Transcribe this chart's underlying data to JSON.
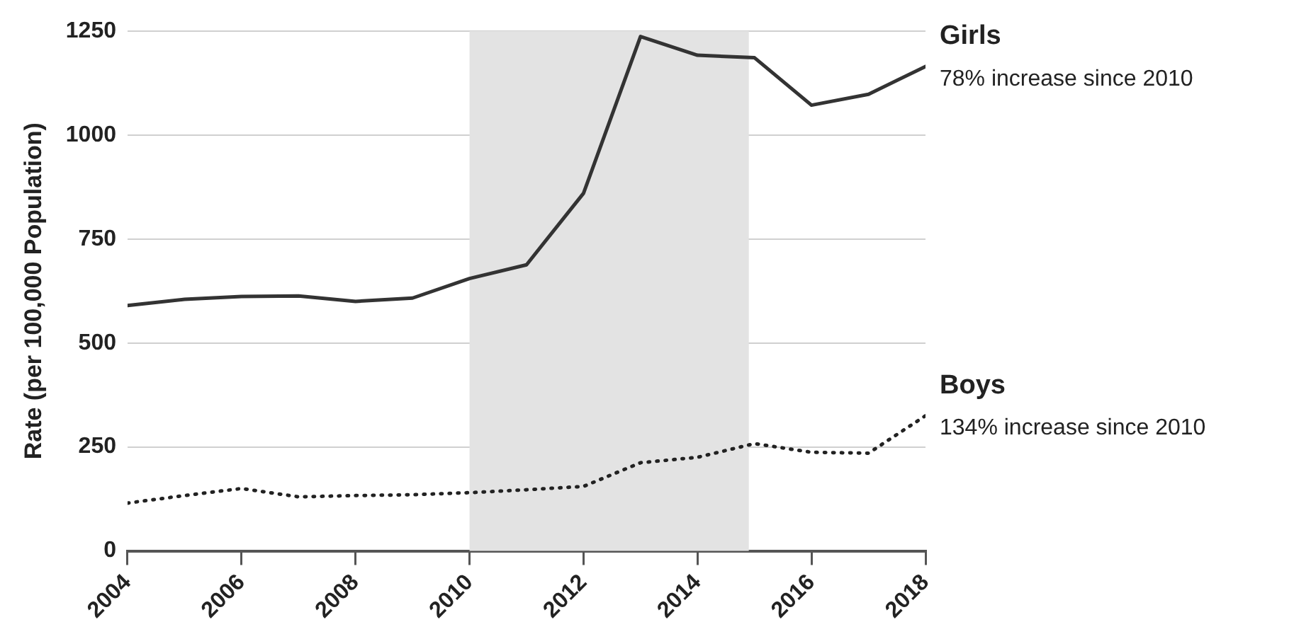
{
  "chart_data": {
    "type": "line",
    "ylabel": "Rate (per 100,000 Population)",
    "x": [
      2004,
      2005,
      2006,
      2007,
      2008,
      2009,
      2010,
      2011,
      2012,
      2013,
      2014,
      2015,
      2016,
      2017,
      2018
    ],
    "series": [
      {
        "name": "Girls",
        "color": "#333333",
        "line_style": "solid",
        "values": [
          590,
          605,
          612,
          613,
          600,
          608,
          655,
          688,
          860,
          1237,
          1192,
          1186,
          1072,
          1098,
          1165
        ]
      },
      {
        "name": "Boys",
        "color": "#222222",
        "line_style": "dotted",
        "values": [
          115,
          133,
          150,
          130,
          133,
          135,
          140,
          147,
          155,
          212,
          225,
          258,
          237,
          235,
          325
        ]
      }
    ],
    "xlim": [
      2004,
      2018
    ],
    "xticks": [
      2004,
      2006,
      2008,
      2010,
      2012,
      2014,
      2016,
      2018
    ],
    "ylim": [
      0,
      1250
    ],
    "yticks": [
      0,
      250,
      500,
      750,
      1000,
      1250
    ],
    "bands": [
      {
        "axis": "x",
        "from": 2010,
        "to": 2014.9,
        "color": "#e3e3e3"
      }
    ],
    "annotations": [
      {
        "text": "78% increase since 2010",
        "x": 2018,
        "y": 1165
      },
      {
        "text": "134% increase since 2010",
        "x": 2018,
        "y": 325
      }
    ],
    "grid": "y",
    "legend": false,
    "marker": "none"
  }
}
